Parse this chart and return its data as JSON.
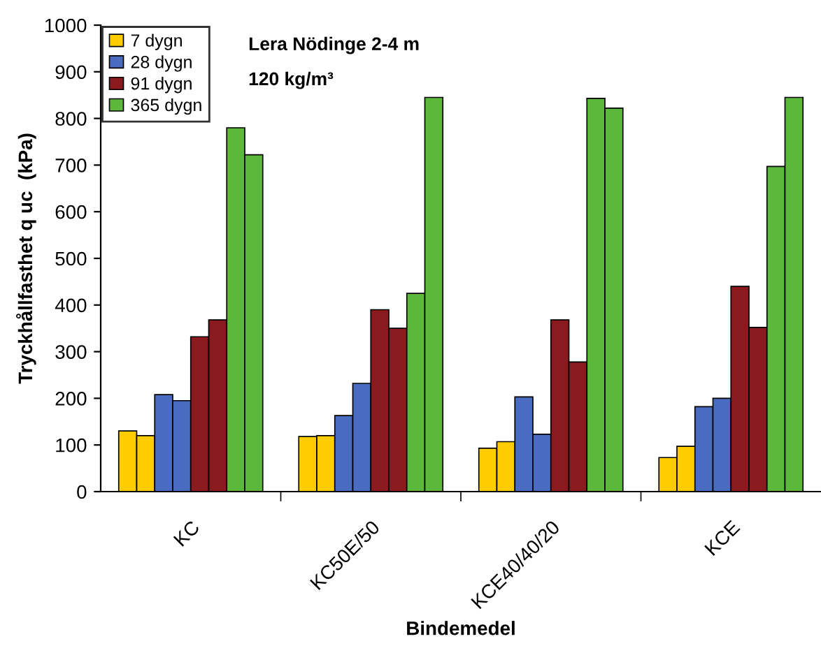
{
  "chart_data": {
    "type": "bar",
    "xlabel": "Bindemedel",
    "ylabel": "Tryckhållfasthet q uc  (kPa)",
    "categories": [
      "KC",
      "KC50E/50",
      "KCE40/40/20",
      "KCE"
    ],
    "series": [
      {
        "name": "7 dygn",
        "color": "#ffcc00",
        "values": [
          130,
          118,
          93,
          73
        ]
      },
      {
        "color": "#ffcc00",
        "values": [
          120,
          120,
          107,
          97
        ]
      },
      {
        "name": "28 dygn",
        "color": "#4a6cc0",
        "values": [
          208,
          163,
          203,
          182
        ]
      },
      {
        "color": "#4a6cc0",
        "values": [
          195,
          232,
          123,
          200
        ]
      },
      {
        "name": "91 dygn",
        "color": "#8b1a1e",
        "values": [
          332,
          390,
          368,
          440
        ]
      },
      {
        "color": "#8b1a1e",
        "values": [
          368,
          350,
          278,
          352
        ]
      },
      {
        "name": "365 dygn",
        "color": "#5cb83a",
        "values": [
          780,
          425,
          843,
          697
        ]
      },
      {
        "color": "#5cb83a",
        "values": [
          722,
          845,
          822,
          845
        ]
      }
    ],
    "ylim": [
      0,
      1000
    ],
    "yticks": [
      0,
      100,
      200,
      300,
      400,
      500,
      600,
      700,
      800,
      900,
      1000
    ],
    "annotations": [
      "Lera Nödinge 2-4 m",
      "120 kg/m³"
    ],
    "legend": "top left",
    "grid": false
  }
}
